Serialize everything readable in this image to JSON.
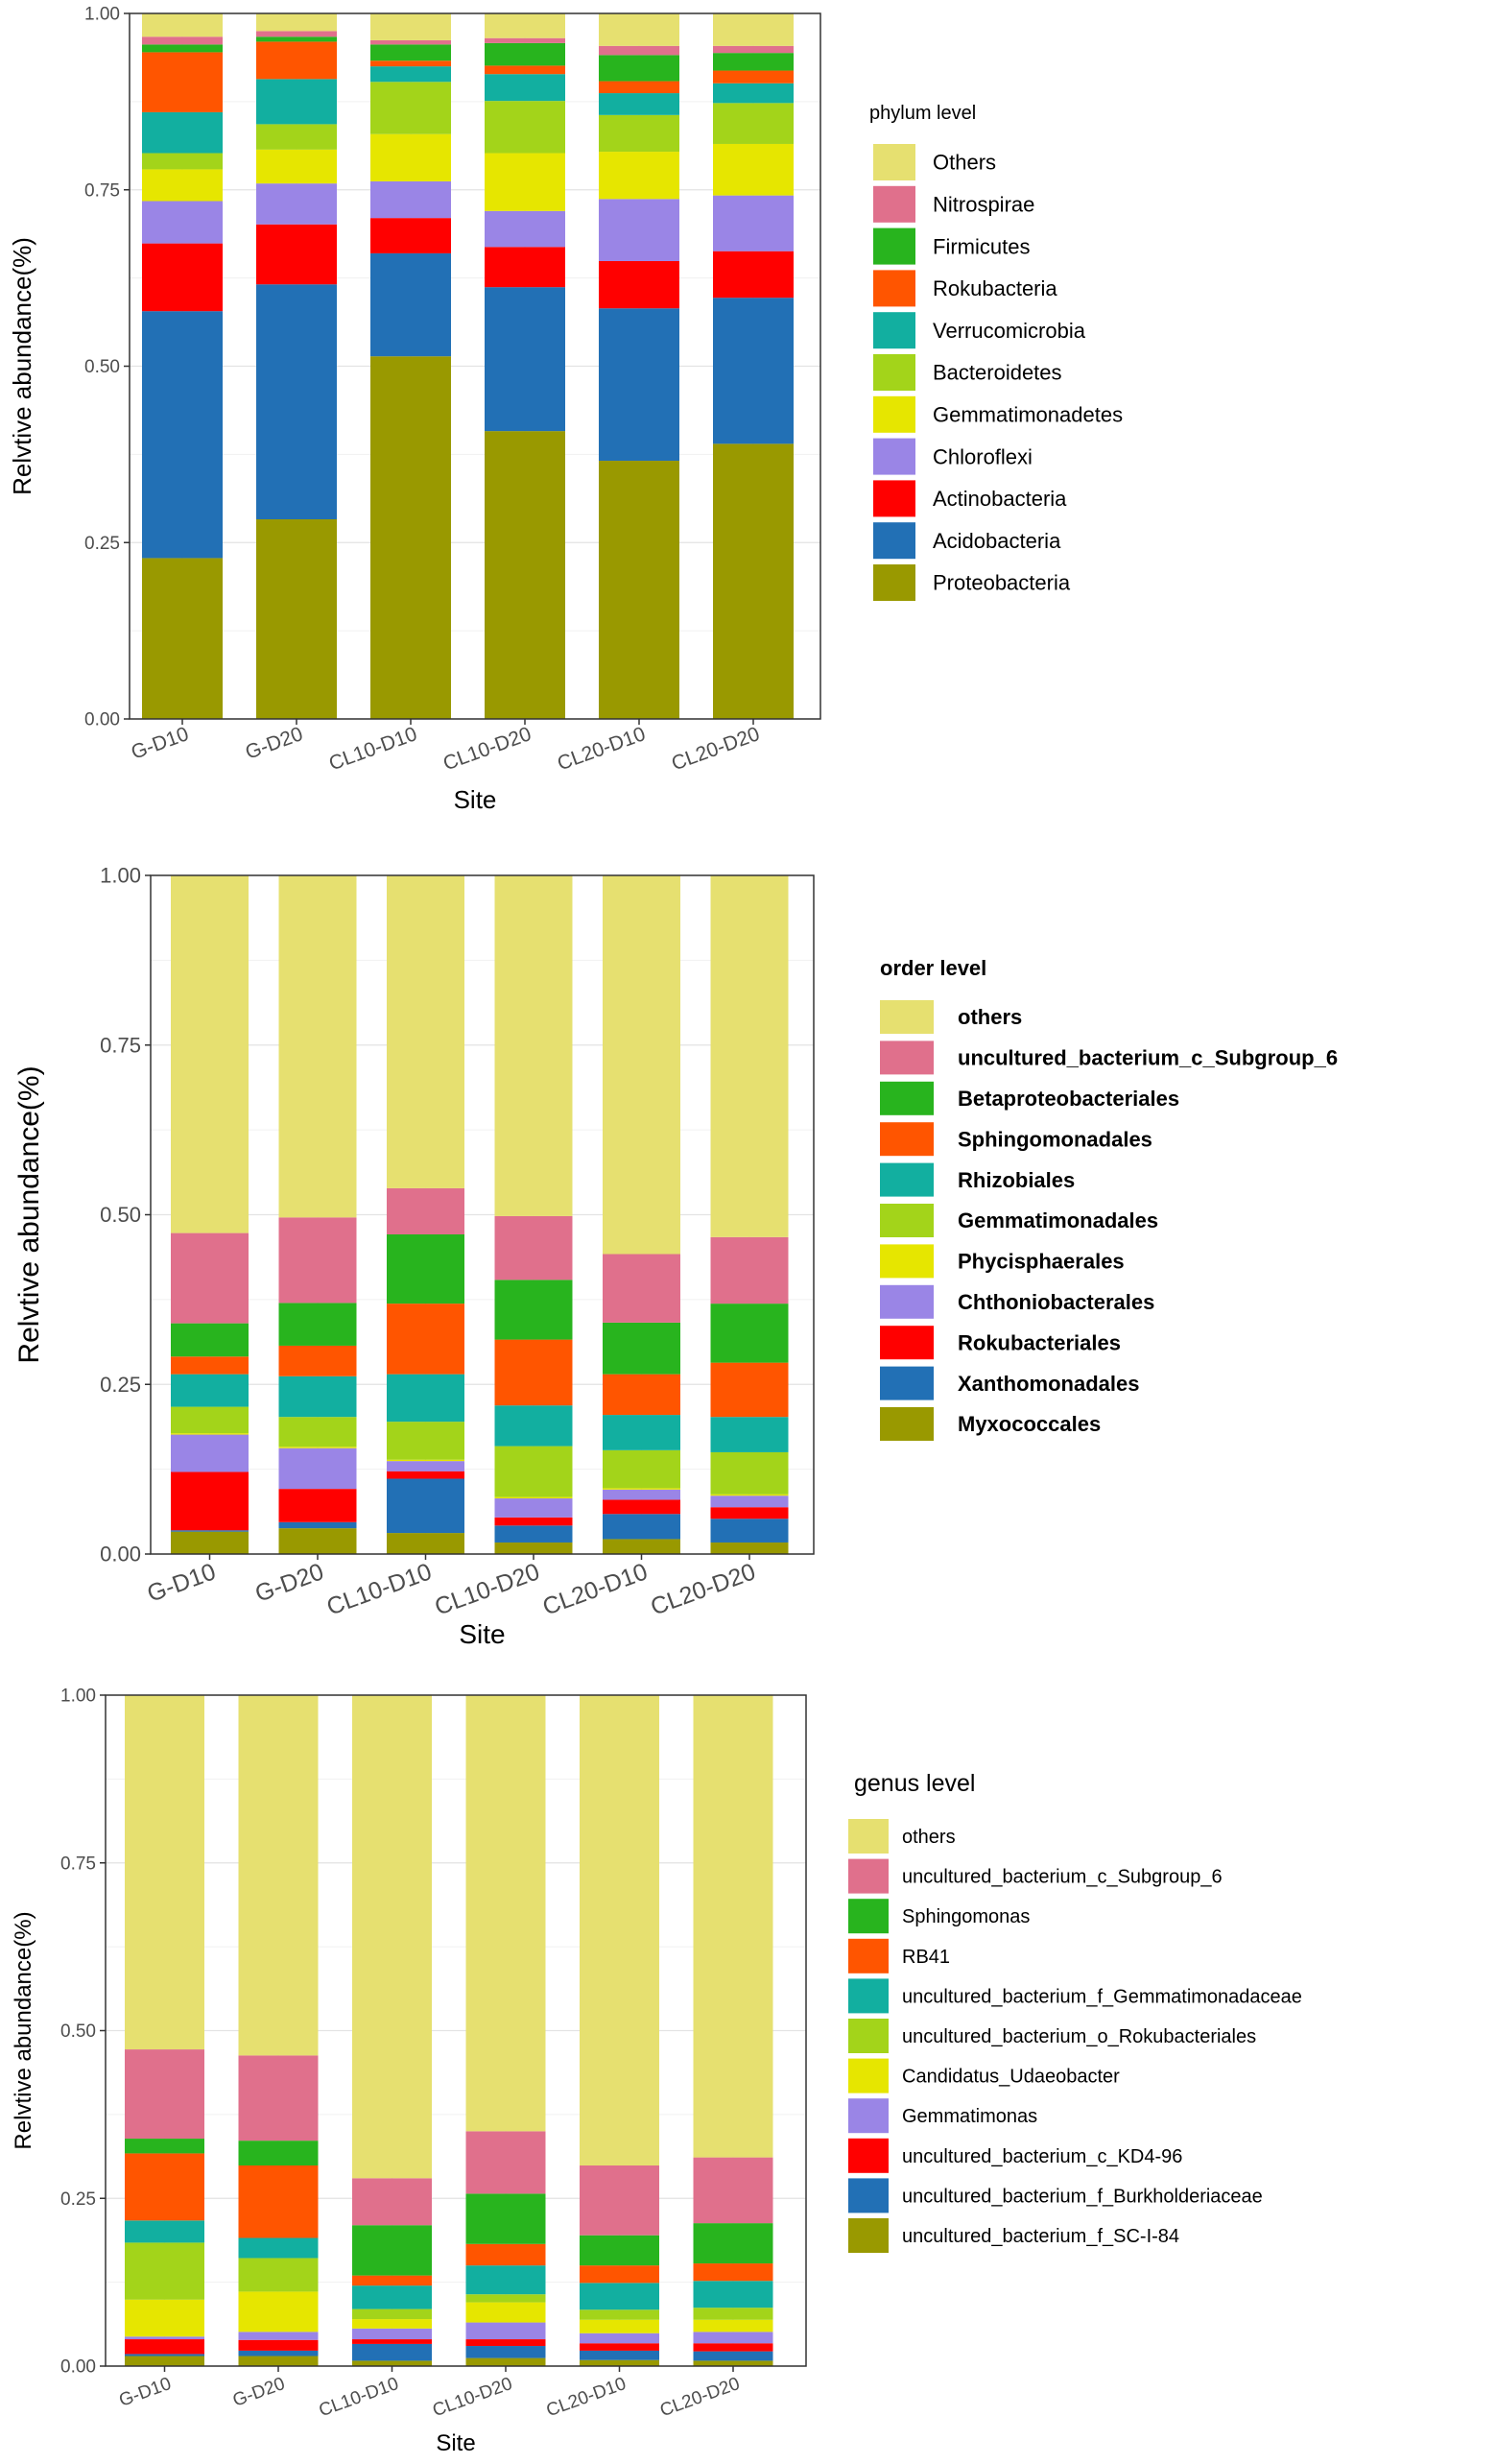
{
  "chart_data": [
    {
      "type": "bar",
      "stacked": true,
      "title": "",
      "xlabel": "Site",
      "ylabel": "Relvtive abundance(%)",
      "ylim": [
        0,
        1
      ],
      "yticks": [
        "0.00",
        "0.25",
        "0.50",
        "0.75",
        "1.00"
      ],
      "grid": true,
      "legend_title": "phylum level",
      "legend_position": "right",
      "categories": [
        "G-D10",
        "G-D20",
        "CL10-D10",
        "CL10-D20",
        "CL20-D10",
        "CL20-D20"
      ],
      "series": [
        {
          "name": "Proteobacteria",
          "color": "#999900",
          "values": [
            0.228,
            0.283,
            0.514,
            0.408,
            0.366,
            0.39
          ]
        },
        {
          "name": "Acidobacteria",
          "color": "#2270B5",
          "values": [
            0.35,
            0.333,
            0.146,
            0.204,
            0.216,
            0.207
          ]
        },
        {
          "name": "Actinobacteria",
          "color": "#FF0000",
          "values": [
            0.096,
            0.085,
            0.05,
            0.057,
            0.067,
            0.066
          ]
        },
        {
          "name": "Chloroflexi",
          "color": "#9A85E6",
          "values": [
            0.06,
            0.058,
            0.052,
            0.051,
            0.088,
            0.079
          ]
        },
        {
          "name": "Gemmatimonadetes",
          "color": "#E6E600",
          "values": [
            0.045,
            0.048,
            0.067,
            0.082,
            0.067,
            0.073
          ]
        },
        {
          "name": "Bacteroidetes",
          "color": "#A3D41A",
          "values": [
            0.023,
            0.036,
            0.074,
            0.074,
            0.052,
            0.058
          ]
        },
        {
          "name": "Verrucomicrobia",
          "color": "#12AFA0",
          "values": [
            0.058,
            0.064,
            0.022,
            0.038,
            0.031,
            0.028
          ]
        },
        {
          "name": "Rokubacteria",
          "color": "#FF5500",
          "values": [
            0.085,
            0.053,
            0.008,
            0.012,
            0.017,
            0.018
          ]
        },
        {
          "name": "Firmicutes",
          "color": "#28B41E",
          "values": [
            0.011,
            0.007,
            0.023,
            0.032,
            0.037,
            0.025
          ]
        },
        {
          "name": "Nitrospirae",
          "color": "#E0708C",
          "values": [
            0.011,
            0.008,
            0.006,
            0.007,
            0.013,
            0.01
          ]
        },
        {
          "name": "Others",
          "color": "#E6E070",
          "values": [
            0.033,
            0.025,
            0.038,
            0.035,
            0.046,
            0.046
          ]
        }
      ]
    },
    {
      "type": "bar",
      "stacked": true,
      "title": "",
      "xlabel": "Site",
      "ylabel": "Relvtive abundance(%)",
      "ylim": [
        0,
        1
      ],
      "yticks": [
        "0.00",
        "0.25",
        "0.50",
        "0.75",
        "1.00"
      ],
      "grid": true,
      "legend_title": "order level",
      "legend_position": "right",
      "categories": [
        "G-D10",
        "G-D20",
        "CL10-D10",
        "CL10-D20",
        "CL20-D10",
        "CL20-D20"
      ],
      "series": [
        {
          "name": "Myxococcales",
          "color": "#999900",
          "values": [
            0.033,
            0.038,
            0.031,
            0.017,
            0.022,
            0.017
          ]
        },
        {
          "name": "Xanthomonadales",
          "color": "#2270B5",
          "values": [
            0.002,
            0.009,
            0.08,
            0.025,
            0.037,
            0.035
          ]
        },
        {
          "name": "Rokubacteriales",
          "color": "#FF0000",
          "values": [
            0.086,
            0.049,
            0.011,
            0.012,
            0.021,
            0.017
          ]
        },
        {
          "name": "Chthoniobacterales",
          "color": "#9A85E6",
          "values": [
            0.055,
            0.06,
            0.015,
            0.028,
            0.015,
            0.017
          ]
        },
        {
          "name": "Phycisphaerales",
          "color": "#E6E600",
          "values": [
            0.002,
            0.002,
            0.002,
            0.002,
            0.002,
            0.002
          ]
        },
        {
          "name": "Gemmatimonadales",
          "color": "#A3D41A",
          "values": [
            0.039,
            0.044,
            0.056,
            0.075,
            0.056,
            0.062
          ]
        },
        {
          "name": "Rhizobiales",
          "color": "#12AFA0",
          "values": [
            0.048,
            0.06,
            0.07,
            0.06,
            0.052,
            0.052
          ]
        },
        {
          "name": "Sphingomonadales",
          "color": "#FF5500",
          "values": [
            0.026,
            0.045,
            0.104,
            0.097,
            0.06,
            0.08
          ]
        },
        {
          "name": "Betaproteobacteriales",
          "color": "#28B41E",
          "values": [
            0.049,
            0.063,
            0.102,
            0.088,
            0.076,
            0.087
          ]
        },
        {
          "name": "uncultured_bacterium_c_Subgroup_6",
          "color": "#E0708C",
          "values": [
            0.133,
            0.126,
            0.068,
            0.094,
            0.101,
            0.098
          ]
        },
        {
          "name": "others",
          "color": "#E6E070",
          "values": [
            0.527,
            0.504,
            0.461,
            0.502,
            0.558,
            0.533
          ]
        }
      ]
    },
    {
      "type": "bar",
      "stacked": true,
      "title": "",
      "xlabel": "Site",
      "ylabel": "Relvtive abundance(%)",
      "ylim": [
        0,
        1
      ],
      "yticks": [
        "0.00",
        "0.25",
        "0.50",
        "0.75",
        "1.00"
      ],
      "grid": true,
      "legend_title": "genus level",
      "legend_position": "right",
      "categories": [
        "G-D10",
        "G-D20",
        "CL10-D10",
        "CL10-D20",
        "CL20-D10",
        "CL20-D20"
      ],
      "series": [
        {
          "name": "uncultured_bacterium_f_SC-I-84",
          "color": "#999900",
          "values": [
            0.015,
            0.015,
            0.008,
            0.012,
            0.009,
            0.008
          ]
        },
        {
          "name": "uncultured_bacterium_f_Burkholderiaceae",
          "color": "#2270B5",
          "values": [
            0.003,
            0.008,
            0.025,
            0.018,
            0.014,
            0.014
          ]
        },
        {
          "name": "uncultured_bacterium_c_KD4-96",
          "color": "#FF0000",
          "values": [
            0.022,
            0.016,
            0.007,
            0.01,
            0.011,
            0.012
          ]
        },
        {
          "name": "Gemmatimonas",
          "color": "#9A85E6",
          "values": [
            0.004,
            0.012,
            0.016,
            0.025,
            0.015,
            0.017
          ]
        },
        {
          "name": "Candidatus_Udaeobacter",
          "color": "#E6E600",
          "values": [
            0.055,
            0.06,
            0.014,
            0.03,
            0.02,
            0.018
          ]
        },
        {
          "name": "uncultured_bacterium_o_Rokubacteriales",
          "color": "#A3D41A",
          "values": [
            0.085,
            0.05,
            0.015,
            0.012,
            0.015,
            0.018
          ]
        },
        {
          "name": "uncultured_bacterium_f_Gemmatimonadaceae",
          "color": "#12AFA0",
          "values": [
            0.033,
            0.03,
            0.035,
            0.043,
            0.04,
            0.04
          ]
        },
        {
          "name": "RB41",
          "color": "#FF5500",
          "values": [
            0.1,
            0.108,
            0.015,
            0.032,
            0.026,
            0.026
          ]
        },
        {
          "name": "Sphingomonas",
          "color": "#28B41E",
          "values": [
            0.022,
            0.037,
            0.075,
            0.075,
            0.045,
            0.06
          ]
        },
        {
          "name": "uncultured_bacterium_c_Subgroup_6",
          "color": "#E0708C",
          "values": [
            0.133,
            0.127,
            0.07,
            0.093,
            0.104,
            0.098
          ]
        },
        {
          "name": "others",
          "color": "#E6E070",
          "values": [
            0.528,
            0.537,
            0.72,
            0.65,
            0.701,
            0.689
          ]
        }
      ]
    }
  ]
}
